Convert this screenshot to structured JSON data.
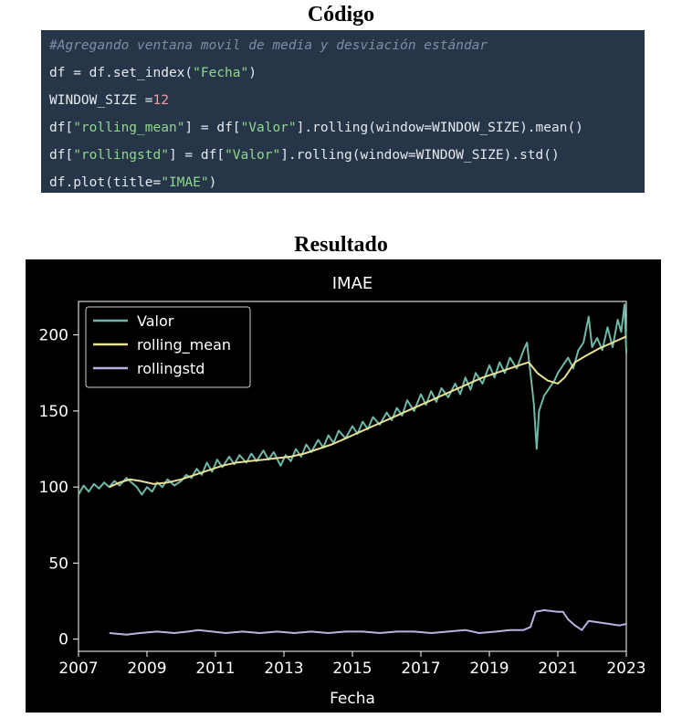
{
  "headings": {
    "code": "Código",
    "result": "Resultado"
  },
  "code": {
    "lines": [
      [
        {
          "t": "#Agregando ventana movil de media y desviación estándar",
          "c": "comment"
        }
      ],
      [
        {
          "t": "df = df.set_index(",
          "c": "plain"
        },
        {
          "t": "\"Fecha\"",
          "c": "str"
        },
        {
          "t": ")",
          "c": "plain"
        }
      ],
      [
        {
          "t": "WINDOW_SIZE =",
          "c": "plain"
        },
        {
          "t": "12",
          "c": "num"
        }
      ],
      [
        {
          "t": "df[",
          "c": "plain"
        },
        {
          "t": "\"rolling_mean\"",
          "c": "str"
        },
        {
          "t": "] = df[",
          "c": "plain"
        },
        {
          "t": "\"Valor\"",
          "c": "str"
        },
        {
          "t": "].rolling(window=WINDOW_SIZE).mean()",
          "c": "plain"
        }
      ],
      [
        {
          "t": "df[",
          "c": "plain"
        },
        {
          "t": "\"rollingstd\"",
          "c": "str"
        },
        {
          "t": "] = df[",
          "c": "plain"
        },
        {
          "t": "\"Valor\"",
          "c": "str"
        },
        {
          "t": "].rolling(window=WINDOW_SIZE).std()",
          "c": "plain"
        }
      ],
      [
        {
          "t": "df.plot(title=",
          "c": "plain"
        },
        {
          "t": "\"IMAE\"",
          "c": "str"
        },
        {
          "t": ")",
          "c": "plain"
        }
      ]
    ]
  },
  "chart_data": {
    "type": "line",
    "title": "IMAE",
    "xlabel": "Fecha",
    "ylabel": "",
    "xlim": [
      2007,
      2023
    ],
    "ylim": [
      -8,
      222
    ],
    "x_ticks": [
      "2007",
      "2009",
      "2011",
      "2013",
      "2015",
      "2017",
      "2019",
      "2021",
      "2023"
    ],
    "y_ticks": [
      "0",
      "50",
      "100",
      "150",
      "200"
    ],
    "grid": false,
    "legend_position": "top-left",
    "background": "#000000",
    "series": [
      {
        "name": "Valor",
        "color": "#6fb8a8",
        "points": [
          [
            2007.0,
            95
          ],
          [
            2007.15,
            101
          ],
          [
            2007.3,
            97
          ],
          [
            2007.45,
            102
          ],
          [
            2007.6,
            99
          ],
          [
            2007.75,
            103
          ],
          [
            2007.9,
            100
          ],
          [
            2008.05,
            104
          ],
          [
            2008.2,
            101
          ],
          [
            2008.4,
            106
          ],
          [
            2008.55,
            103
          ],
          [
            2008.7,
            100
          ],
          [
            2008.85,
            95
          ],
          [
            2009.0,
            100
          ],
          [
            2009.15,
            97
          ],
          [
            2009.3,
            103
          ],
          [
            2009.45,
            100
          ],
          [
            2009.6,
            105
          ],
          [
            2009.8,
            101
          ],
          [
            2010.0,
            104
          ],
          [
            2010.15,
            108
          ],
          [
            2010.3,
            106
          ],
          [
            2010.45,
            112
          ],
          [
            2010.6,
            108
          ],
          [
            2010.75,
            116
          ],
          [
            2010.9,
            110
          ],
          [
            2011.05,
            118
          ],
          [
            2011.2,
            113
          ],
          [
            2011.4,
            120
          ],
          [
            2011.55,
            115
          ],
          [
            2011.7,
            121
          ],
          [
            2011.9,
            116
          ],
          [
            2012.05,
            122
          ],
          [
            2012.2,
            117
          ],
          [
            2012.4,
            124
          ],
          [
            2012.55,
            118
          ],
          [
            2012.7,
            123
          ],
          [
            2012.9,
            114
          ],
          [
            2013.05,
            121
          ],
          [
            2013.2,
            117
          ],
          [
            2013.35,
            125
          ],
          [
            2013.5,
            120
          ],
          [
            2013.65,
            128
          ],
          [
            2013.8,
            123
          ],
          [
            2014.0,
            131
          ],
          [
            2014.15,
            126
          ],
          [
            2014.3,
            134
          ],
          [
            2014.45,
            129
          ],
          [
            2014.6,
            137
          ],
          [
            2014.8,
            132
          ],
          [
            2015.0,
            140
          ],
          [
            2015.15,
            135
          ],
          [
            2015.3,
            143
          ],
          [
            2015.45,
            138
          ],
          [
            2015.6,
            146
          ],
          [
            2015.8,
            141
          ],
          [
            2016.0,
            149
          ],
          [
            2016.15,
            144
          ],
          [
            2016.3,
            152
          ],
          [
            2016.45,
            147
          ],
          [
            2016.6,
            157
          ],
          [
            2016.8,
            150
          ],
          [
            2017.0,
            161
          ],
          [
            2017.15,
            154
          ],
          [
            2017.3,
            163
          ],
          [
            2017.45,
            156
          ],
          [
            2017.6,
            165
          ],
          [
            2017.8,
            159
          ],
          [
            2018.0,
            168
          ],
          [
            2018.15,
            161
          ],
          [
            2018.3,
            172
          ],
          [
            2018.45,
            164
          ],
          [
            2018.6,
            175
          ],
          [
            2018.8,
            168
          ],
          [
            2019.0,
            180
          ],
          [
            2019.15,
            172
          ],
          [
            2019.3,
            182
          ],
          [
            2019.45,
            175
          ],
          [
            2019.6,
            185
          ],
          [
            2019.8,
            178
          ],
          [
            2020.0,
            190
          ],
          [
            2020.1,
            195
          ],
          [
            2020.2,
            175
          ],
          [
            2020.3,
            155
          ],
          [
            2020.38,
            125
          ],
          [
            2020.45,
            150
          ],
          [
            2020.6,
            160
          ],
          [
            2020.75,
            165
          ],
          [
            2020.9,
            170
          ],
          [
            2021.0,
            175
          ],
          [
            2021.15,
            180
          ],
          [
            2021.3,
            185
          ],
          [
            2021.45,
            178
          ],
          [
            2021.6,
            190
          ],
          [
            2021.75,
            195
          ],
          [
            2021.9,
            212
          ],
          [
            2022.0,
            192
          ],
          [
            2022.15,
            198
          ],
          [
            2022.3,
            190
          ],
          [
            2022.45,
            205
          ],
          [
            2022.6,
            192
          ],
          [
            2022.75,
            210
          ],
          [
            2022.85,
            202
          ],
          [
            2022.95,
            220
          ],
          [
            2023.0,
            188
          ]
        ]
      },
      {
        "name": "rolling_mean",
        "color": "#e8e096",
        "points": [
          [
            2007.9,
            100
          ],
          [
            2008.2,
            103
          ],
          [
            2008.5,
            105
          ],
          [
            2008.8,
            104
          ],
          [
            2009.2,
            102
          ],
          [
            2009.6,
            103
          ],
          [
            2010.0,
            105
          ],
          [
            2010.4,
            108
          ],
          [
            2010.8,
            111
          ],
          [
            2011.2,
            114
          ],
          [
            2011.6,
            116
          ],
          [
            2012.0,
            117
          ],
          [
            2012.4,
            118
          ],
          [
            2012.8,
            119
          ],
          [
            2013.2,
            120
          ],
          [
            2013.6,
            122
          ],
          [
            2014.0,
            125
          ],
          [
            2014.4,
            128
          ],
          [
            2014.8,
            132
          ],
          [
            2015.2,
            136
          ],
          [
            2015.6,
            140
          ],
          [
            2016.0,
            144
          ],
          [
            2016.4,
            148
          ],
          [
            2016.8,
            152
          ],
          [
            2017.2,
            156
          ],
          [
            2017.6,
            160
          ],
          [
            2018.0,
            164
          ],
          [
            2018.4,
            168
          ],
          [
            2018.8,
            172
          ],
          [
            2019.2,
            175
          ],
          [
            2019.6,
            178
          ],
          [
            2020.0,
            181
          ],
          [
            2020.15,
            182
          ],
          [
            2020.4,
            175
          ],
          [
            2020.7,
            170
          ],
          [
            2021.0,
            168
          ],
          [
            2021.2,
            172
          ],
          [
            2021.5,
            182
          ],
          [
            2021.8,
            186
          ],
          [
            2022.2,
            191
          ],
          [
            2022.6,
            195
          ],
          [
            2023.0,
            199
          ]
        ]
      },
      {
        "name": "rollingstd",
        "color": "#b8b2e0",
        "points": [
          [
            2007.9,
            4
          ],
          [
            2008.4,
            3
          ],
          [
            2008.8,
            4
          ],
          [
            2009.3,
            5
          ],
          [
            2009.8,
            4
          ],
          [
            2010.2,
            5
          ],
          [
            2010.5,
            6
          ],
          [
            2010.9,
            5
          ],
          [
            2011.3,
            4
          ],
          [
            2011.8,
            5
          ],
          [
            2012.3,
            4
          ],
          [
            2012.8,
            5
          ],
          [
            2013.3,
            4
          ],
          [
            2013.8,
            5
          ],
          [
            2014.3,
            4
          ],
          [
            2014.8,
            5
          ],
          [
            2015.3,
            5
          ],
          [
            2015.8,
            4
          ],
          [
            2016.3,
            5
          ],
          [
            2016.8,
            5
          ],
          [
            2017.3,
            4
          ],
          [
            2017.8,
            5
          ],
          [
            2018.3,
            6
          ],
          [
            2018.7,
            4
          ],
          [
            2019.2,
            5
          ],
          [
            2019.6,
            6
          ],
          [
            2020.0,
            6
          ],
          [
            2020.2,
            8
          ],
          [
            2020.35,
            18
          ],
          [
            2020.6,
            19
          ],
          [
            2021.0,
            18
          ],
          [
            2021.15,
            18
          ],
          [
            2021.3,
            13
          ],
          [
            2021.5,
            9
          ],
          [
            2021.7,
            6
          ],
          [
            2021.9,
            12
          ],
          [
            2022.2,
            11
          ],
          [
            2022.5,
            10
          ],
          [
            2022.8,
            9
          ],
          [
            2023.0,
            10
          ]
        ]
      }
    ]
  }
}
